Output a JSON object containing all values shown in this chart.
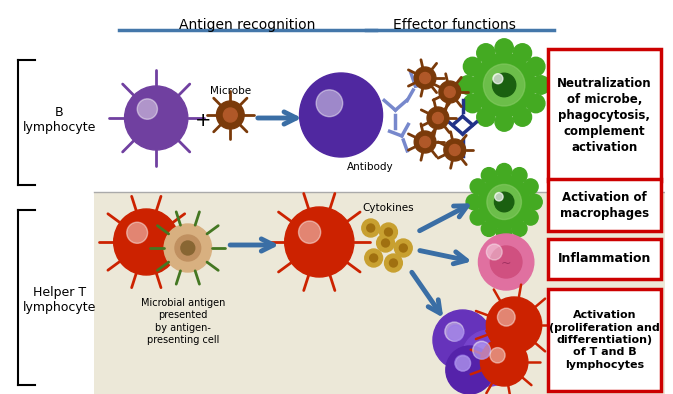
{
  "fig_width": 6.73,
  "fig_height": 3.94,
  "bg_top": "#ffffff",
  "bg_bottom": "#ece8d8",
  "header_antigen": "Antigen recognition",
  "header_effector": "Effector functions",
  "label_b": "B\nlymphocyte",
  "label_helper": "Helper T\nlymphocyte",
  "label_microbe": "Microbe",
  "label_antibody": "Antibody",
  "label_cytokines": "Cytokines",
  "label_microbial": "Microbial antigen\npresented\nby antigen-\npresenting cell",
  "box1_text": "Neutralization\nof microbe,\nphagocytosis,\ncomplement\nactivation",
  "box2_text": "Activation of\nmacrophages",
  "box3_text": "Inflammation",
  "box4_text": "Activation\n(proliferation and\ndifferentiation)\nof T and B\nlymphocytes",
  "arrow_color": "#3a6ea5",
  "box_border_color": "#cc0000",
  "box_fill_color": "#ffffff",
  "header_line_color": "#4477aa",
  "purple_cell": "#7040a0",
  "purple_activated": "#6030a0",
  "red_cell": "#cc2200",
  "green_cell": "#44aa22",
  "pink_cell": "#e070a0",
  "brown_microbe": "#7a3a0a",
  "gold_cytokine": "#c8a030",
  "antibody_color": "#7788cc",
  "navy_antibody": "#223388"
}
